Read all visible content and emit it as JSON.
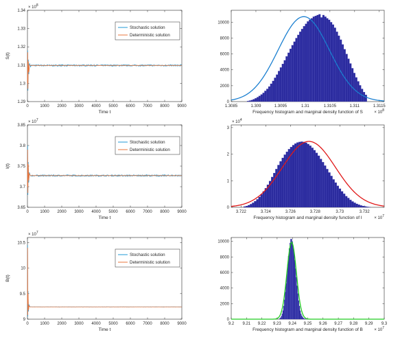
{
  "chart_data": [
    {
      "type": "line",
      "ylabel": "S(t)",
      "xlabel": "Time t",
      "xlim": [
        0,
        9000
      ],
      "ylim": [
        1.29,
        1.34
      ],
      "xticks": [
        "0",
        "1000",
        "2000",
        "3000",
        "4000",
        "5000",
        "6000",
        "7000",
        "8000",
        "9000"
      ],
      "yticks": [
        "1.29",
        "1.3",
        "1.31",
        "1.32",
        "1.33",
        "1.34"
      ],
      "ytick_values": [
        1.29,
        1.3,
        1.31,
        1.32,
        1.33,
        1.34
      ],
      "y_exponent": "× 10^8",
      "steady_value": 1.3098,
      "legend_position": "top-center",
      "series": [
        {
          "name": "Stochastic solution",
          "color": "#1f9ad6",
          "noise": 0.0004,
          "transient": [
            [
              0,
              1.3
            ],
            [
              15,
              1.318
            ],
            [
              30,
              1.296
            ],
            [
              50,
              1.313
            ],
            [
              80,
              1.305
            ],
            [
              120,
              1.311
            ],
            [
              180,
              1.309
            ]
          ]
        },
        {
          "name": "Deterministic solution",
          "color": "#e8743b",
          "transient": [
            [
              0,
              1.3
            ],
            [
              15,
              1.317
            ],
            [
              30,
              1.297
            ],
            [
              50,
              1.312
            ],
            [
              80,
              1.306
            ],
            [
              120,
              1.31
            ],
            [
              180,
              1.3098
            ]
          ]
        }
      ]
    },
    {
      "type": "bar",
      "xlabel": "Frequency histogram and marginal density function of S",
      "xlim": [
        1.3085,
        1.3116
      ],
      "ylim": [
        0,
        11500
      ],
      "xticks": [
        "1.3085",
        "1.309",
        "1.3095",
        "1.31",
        "1.3105",
        "1.311",
        "1.3115"
      ],
      "xtick_values": [
        1.3085,
        1.309,
        1.3095,
        1.31,
        1.3105,
        1.311,
        1.3115
      ],
      "yticks": [
        "0",
        "2000",
        "4000",
        "6000",
        "8000",
        "10000"
      ],
      "ytick_values": [
        0,
        2000,
        4000,
        6000,
        8000,
        10000
      ],
      "x_exponent": "× 10^8",
      "bar_color": "#2b2b9e",
      "fit_color": "#1a7fd0",
      "bins": {
        "start": 1.30882,
        "end": 1.31125,
        "count": 62
      },
      "counts": [
        80,
        130,
        200,
        300,
        420,
        560,
        720,
        900,
        1100,
        1350,
        1600,
        1900,
        2250,
        2600,
        3000,
        3400,
        3850,
        4300,
        4750,
        5200,
        5700,
        6150,
        6650,
        7100,
        7550,
        8000,
        8400,
        8800,
        9150,
        9500,
        9800,
        10100,
        10300,
        10500,
        10700,
        10800,
        10900,
        11000,
        10600,
        10900,
        10700,
        10500,
        10300,
        10000,
        9700,
        9300,
        8800,
        8300,
        7800,
        7200,
        6600,
        6000,
        5400,
        4800,
        4200,
        3600,
        3050,
        2550,
        2050,
        1600,
        1200,
        850
      ],
      "fit": {
        "mean": 1.30997,
        "sd": 0.00052,
        "peak": 10700
      }
    },
    {
      "type": "line",
      "ylabel": "I(t)",
      "xlabel": "Time t",
      "xlim": [
        0,
        9000
      ],
      "ylim": [
        3.65,
        3.85
      ],
      "xticks": [
        "0",
        "1000",
        "2000",
        "3000",
        "4000",
        "5000",
        "6000",
        "7000",
        "8000",
        "9000"
      ],
      "yticks": [
        "3.65",
        "3.7",
        "3.75",
        "3.8",
        "3.85"
      ],
      "ytick_values": [
        3.65,
        3.7,
        3.75,
        3.8,
        3.85
      ],
      "y_exponent": "× 10^7",
      "steady_value": 3.727,
      "legend_position": "top-center",
      "series": [
        {
          "name": "Stochastic solution",
          "color": "#1f9ad6",
          "noise": 0.0018,
          "transient": [
            [
              0,
              3.7
            ],
            [
              12,
              3.8
            ],
            [
              28,
              3.68
            ],
            [
              45,
              3.76
            ],
            [
              75,
              3.71
            ],
            [
              110,
              3.735
            ],
            [
              170,
              3.727
            ]
          ]
        },
        {
          "name": "Deterministic solution",
          "color": "#e8743b",
          "transient": [
            [
              0,
              3.7
            ],
            [
              12,
              3.79
            ],
            [
              28,
              3.685
            ],
            [
              45,
              3.755
            ],
            [
              75,
              3.715
            ],
            [
              110,
              3.732
            ],
            [
              170,
              3.727
            ]
          ]
        }
      ]
    },
    {
      "type": "bar",
      "xlabel": "Frequency histogram and marginal density function of I",
      "xlim": [
        3.7212,
        3.7336
      ],
      "ylim": [
        0,
        31000
      ],
      "xticks": [
        "3.722",
        "3.724",
        "3.726",
        "3.728",
        "3.73",
        "3.732"
      ],
      "xtick_values": [
        3.722,
        3.724,
        3.726,
        3.728,
        3.73,
        3.732
      ],
      "yticks": [
        "0",
        "1",
        "2",
        "3"
      ],
      "ytick_values": [
        0,
        10000,
        20000,
        30000
      ],
      "y_exponent": "× 10^4",
      "x_exponent": "× 10^7",
      "bar_color": "#2b2b9e",
      "fit_color": "#e01818",
      "bins": {
        "start": 3.7222,
        "end": 3.7325,
        "count": 60
      },
      "counts": [
        300,
        500,
        800,
        1200,
        1700,
        2300,
        3000,
        3900,
        4900,
        6000,
        7200,
        8500,
        9900,
        11400,
        12900,
        14400,
        15900,
        17300,
        18600,
        19800,
        20900,
        21900,
        22700,
        23400,
        24000,
        24400,
        24600,
        24700,
        24600,
        24300,
        23800,
        23200,
        22400,
        21500,
        20500,
        19400,
        18200,
        17000,
        15700,
        14400,
        13100,
        11800,
        10500,
        9300,
        8100,
        7000,
        6000,
        5100,
        4200,
        3500,
        2800,
        2200,
        1700,
        1300,
        1000,
        700,
        500,
        350,
        200,
        120
      ],
      "fit": {
        "mean": 3.7275,
        "sd": 0.00215,
        "peak": 24800
      }
    },
    {
      "type": "line",
      "ylabel": "B(t)",
      "xlabel": "Time t",
      "xlim": [
        0,
        9000
      ],
      "ylim": [
        9.0,
        10.6
      ],
      "xticks": [
        "0",
        "1000",
        "2000",
        "3000",
        "4000",
        "5000",
        "6000",
        "7000",
        "8000",
        "9000"
      ],
      "yticks": [
        "9",
        "9.5",
        "10",
        "10.5"
      ],
      "ytick_values": [
        9.0,
        9.5,
        10.0,
        10.5
      ],
      "y_exponent": "× 10^7",
      "steady_value": 9.24,
      "legend_position": "top-center",
      "series": [
        {
          "name": "Stochastic solution",
          "color": "#1f9ad6",
          "noise": 0.003,
          "transient": [
            [
              0,
              9.3
            ],
            [
              10,
              10.45
            ],
            [
              22,
              9.05
            ],
            [
              38,
              9.55
            ],
            [
              60,
              9.15
            ],
            [
              90,
              9.28
            ],
            [
              150,
              9.24
            ]
          ]
        },
        {
          "name": "Deterministic solution",
          "color": "#e8743b",
          "transient": [
            [
              0,
              9.3
            ],
            [
              10,
              10.4
            ],
            [
              22,
              9.08
            ],
            [
              38,
              9.5
            ],
            [
              60,
              9.18
            ],
            [
              90,
              9.26
            ],
            [
              150,
              9.24
            ]
          ]
        }
      ]
    },
    {
      "type": "bar",
      "xlabel": "Frequency histogram and marginal density function of B",
      "xlim": [
        9.2,
        9.3
      ],
      "ylim": [
        0,
        10500
      ],
      "xticks": [
        "9.2",
        "9.21",
        "9.22",
        "9.23",
        "9.24",
        "9.25",
        "9.26",
        "9.27",
        "9.28",
        "9.29",
        "9.3"
      ],
      "xtick_values": [
        9.2,
        9.21,
        9.22,
        9.23,
        9.24,
        9.25,
        9.26,
        9.27,
        9.28,
        9.29,
        9.3
      ],
      "yticks": [
        "0",
        "2000",
        "4000",
        "6000",
        "8000",
        "10000"
      ],
      "ytick_values": [
        0,
        2000,
        4000,
        6000,
        8000,
        10000
      ],
      "x_exponent": "× 10^7",
      "bar_color": "#2b2b9e",
      "fit_color": "#22cc22",
      "bins": {
        "start": 9.2315,
        "end": 9.249,
        "count": 34
      },
      "counts": [
        100,
        200,
        400,
        700,
        1100,
        1700,
        2500,
        3500,
        4600,
        5800,
        7000,
        8100,
        9100,
        9800,
        10300,
        10300,
        10000,
        9400,
        8600,
        7600,
        6500,
        5400,
        4300,
        3300,
        2400,
        1700,
        1100,
        700,
        450,
        280,
        160,
        90,
        50,
        30
      ],
      "fit": {
        "mean": 9.2395,
        "sd": 0.0031,
        "peak": 9900
      }
    }
  ]
}
